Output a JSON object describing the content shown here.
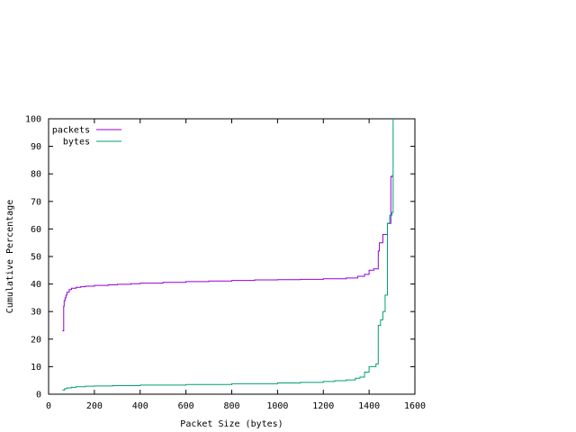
{
  "chart_data": {
    "type": "line",
    "title": "",
    "xlabel": "Packet Size (bytes)",
    "ylabel": "Cumulative Percentage",
    "xlim": [
      0,
      1600
    ],
    "ylim": [
      0,
      100
    ],
    "xticks": [
      0,
      200,
      400,
      600,
      800,
      1000,
      1200,
      1400,
      1600
    ],
    "yticks": [
      0,
      10,
      20,
      30,
      40,
      50,
      60,
      70,
      80,
      90,
      100
    ],
    "grid": false,
    "legend_position": "top-left",
    "series": [
      {
        "name": "packets",
        "color": "#9400d3",
        "step": true,
        "x": [
          60,
          64,
          66,
          68,
          72,
          76,
          80,
          90,
          100,
          120,
          140,
          160,
          200,
          260,
          300,
          360,
          400,
          500,
          600,
          700,
          800,
          900,
          1000,
          1100,
          1200,
          1300,
          1350,
          1380,
          1400,
          1420,
          1440,
          1445,
          1460,
          1480,
          1495,
          1500
        ],
        "y": [
          23,
          23,
          32,
          34,
          35,
          36,
          37,
          38,
          38.5,
          38.8,
          39,
          39.2,
          39.5,
          39.7,
          39.9,
          40.1,
          40.3,
          40.6,
          40.9,
          41.1,
          41.3,
          41.5,
          41.6,
          41.7,
          41.9,
          42.2,
          42.8,
          43.5,
          45,
          45.5,
          52,
          55,
          58,
          62,
          79,
          79.5
        ]
      },
      {
        "name": "bytes",
        "color": "#009e73",
        "step": true,
        "x": [
          60,
          70,
          80,
          100,
          120,
          160,
          200,
          280,
          400,
          600,
          800,
          1000,
          1100,
          1200,
          1250,
          1300,
          1340,
          1360,
          1380,
          1400,
          1430,
          1440,
          1450,
          1460,
          1470,
          1480,
          1490,
          1500,
          1505
        ],
        "y": [
          1.5,
          2,
          2.3,
          2.5,
          2.7,
          2.9,
          3,
          3.1,
          3.3,
          3.5,
          3.8,
          4.1,
          4.3,
          4.6,
          4.9,
          5.2,
          5.8,
          6.2,
          8,
          10,
          11,
          25,
          27,
          30,
          36,
          62,
          65,
          66,
          100
        ]
      }
    ]
  }
}
